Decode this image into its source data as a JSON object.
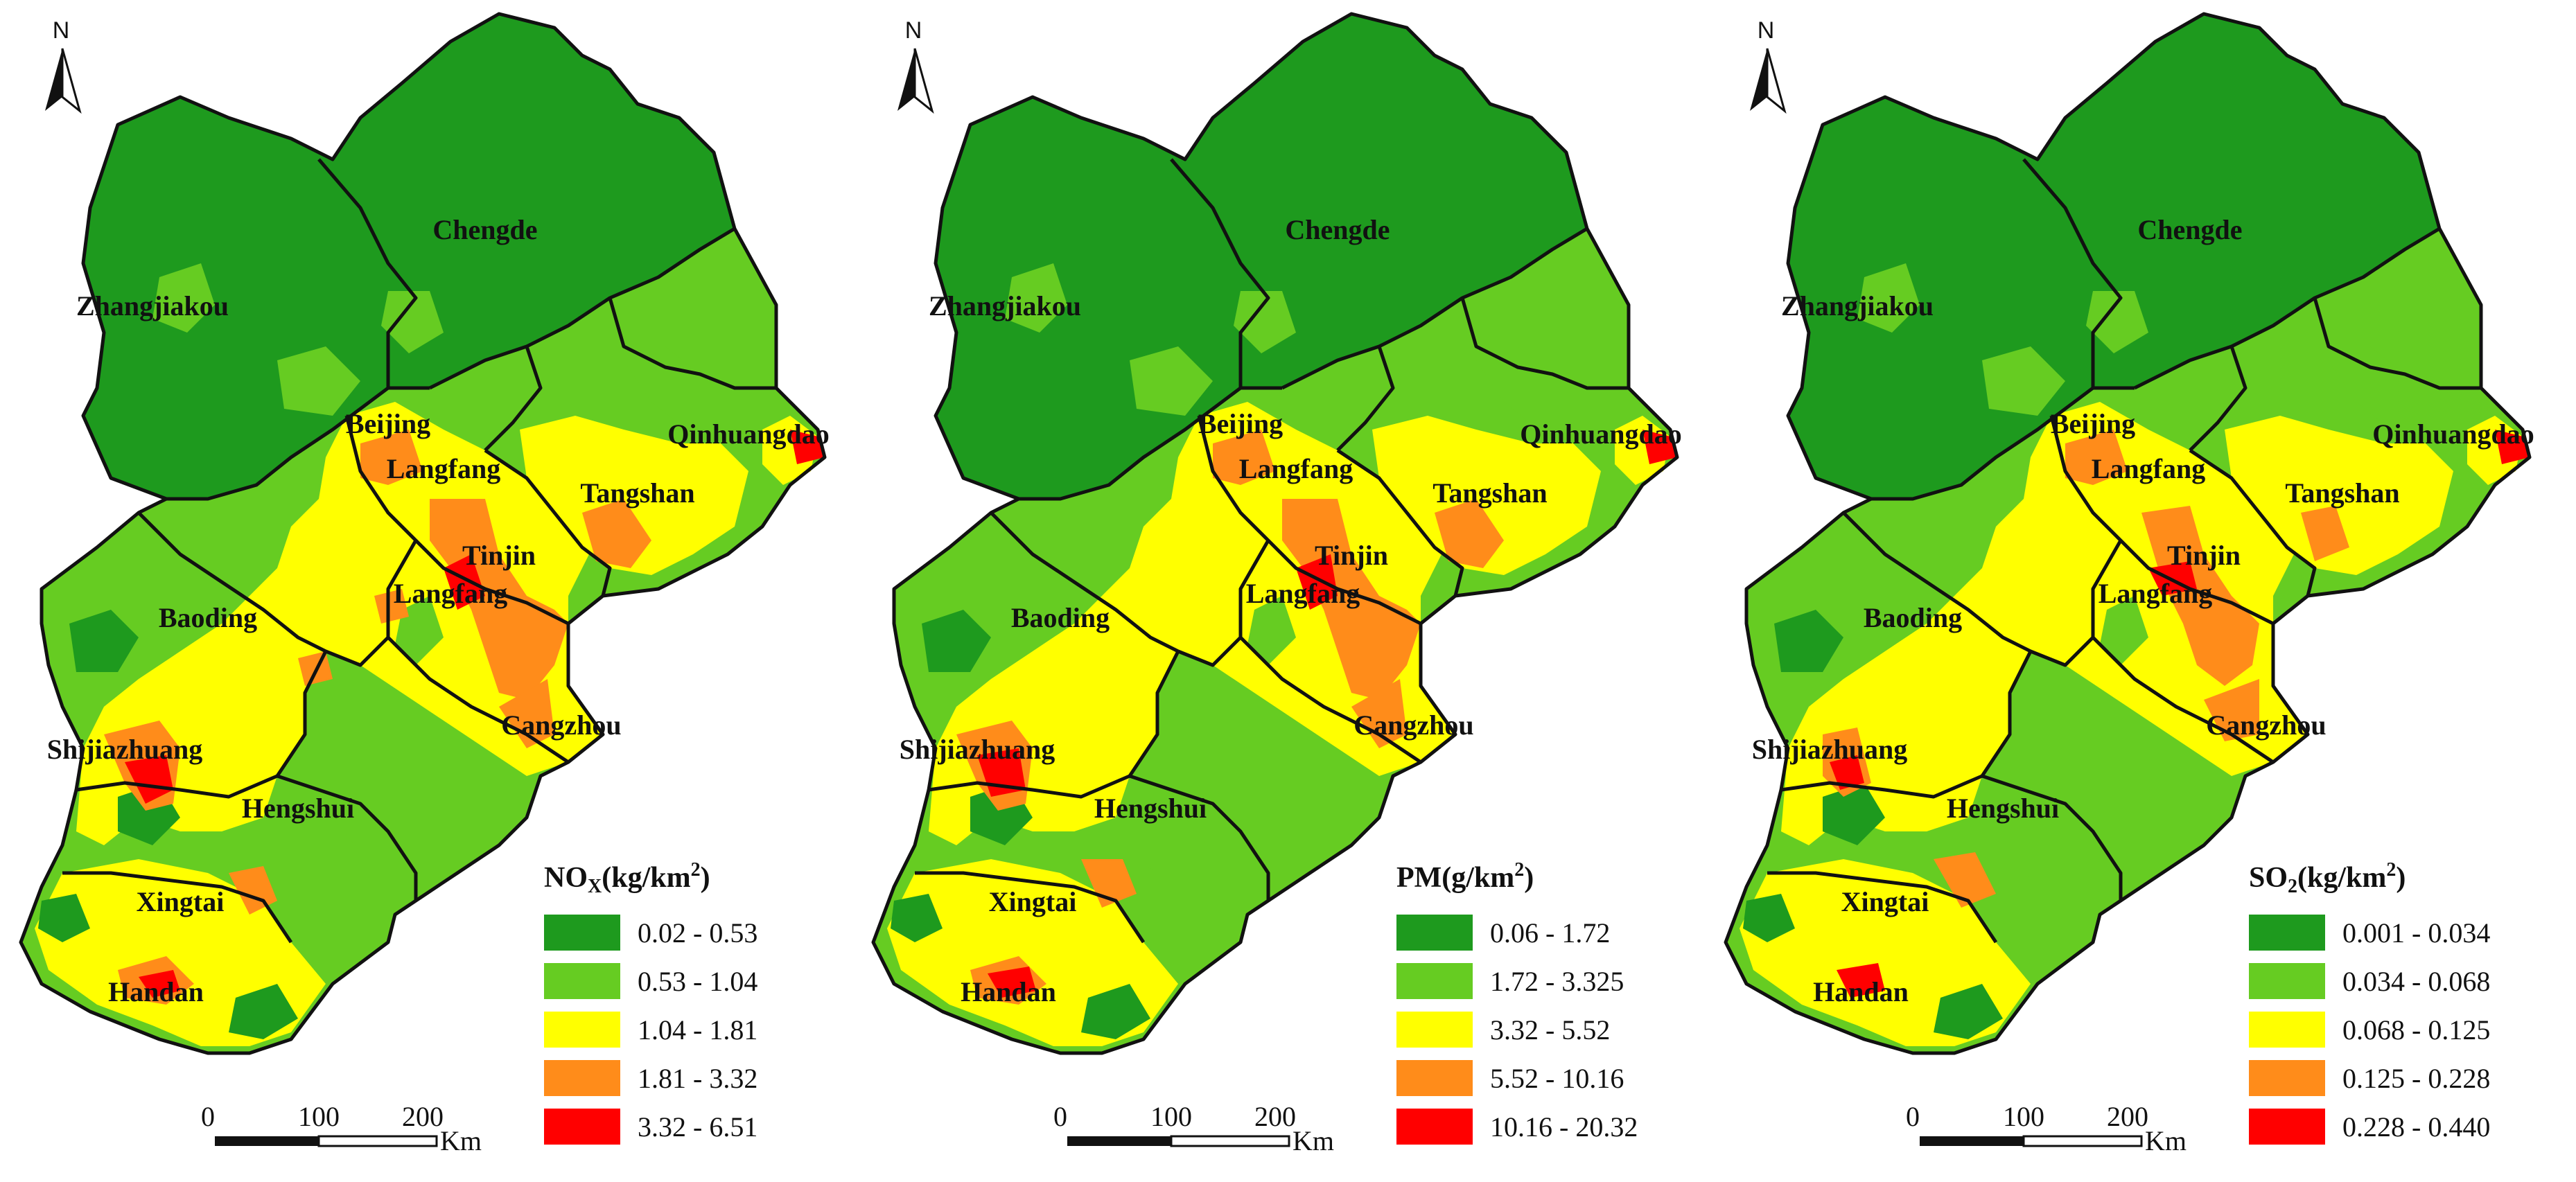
{
  "colors": {
    "c1": "#1e9a1e",
    "c2": "#66cc22",
    "c3": "#ffff00",
    "c4": "#ff8c1a",
    "c5": "#ff0000",
    "border": "#111111"
  },
  "cities": [
    "Chengde",
    "Zhangjiakou",
    "Beijing",
    "Qinhuangdao",
    "Langfang",
    "Tangshan",
    "Tinjin",
    "Langfang",
    "Baoding",
    "Cangzhou",
    "Shijiazhuang",
    "Hengshui",
    "Xingtai",
    "Handan"
  ],
  "north": "N",
  "scale": {
    "t0": "0",
    "t1": "100",
    "t2": "200",
    "unit": "Km"
  },
  "panels": [
    {
      "title_main": "NO",
      "title_sub": "X",
      "title_rest": "(kg/km",
      "title_sup": "2",
      "title_end": ")",
      "classes": [
        "0.02 - 0.53",
        "0.53 - 1.04",
        "1.04 - 1.81",
        "1.81 - 3.32",
        "3.32 - 6.51"
      ]
    },
    {
      "title_main": "PM",
      "title_sub": "",
      "title_rest": "(g/km",
      "title_sup": "2",
      "title_end": ")",
      "classes": [
        "0.06 - 1.72",
        "1.72 - 3.325",
        "3.32 - 5.52",
        "5.52 - 10.16",
        "10.16 - 20.32"
      ]
    },
    {
      "title_main": "SO",
      "title_sub": "2",
      "title_rest": "(kg/km",
      "title_sup": "2",
      "title_end": ")",
      "classes": [
        "0.001 - 0.034",
        "0.034 - 0.068",
        "0.068 - 0.125",
        "0.125 - 0.228",
        "0.228 - 0.440"
      ]
    }
  ]
}
